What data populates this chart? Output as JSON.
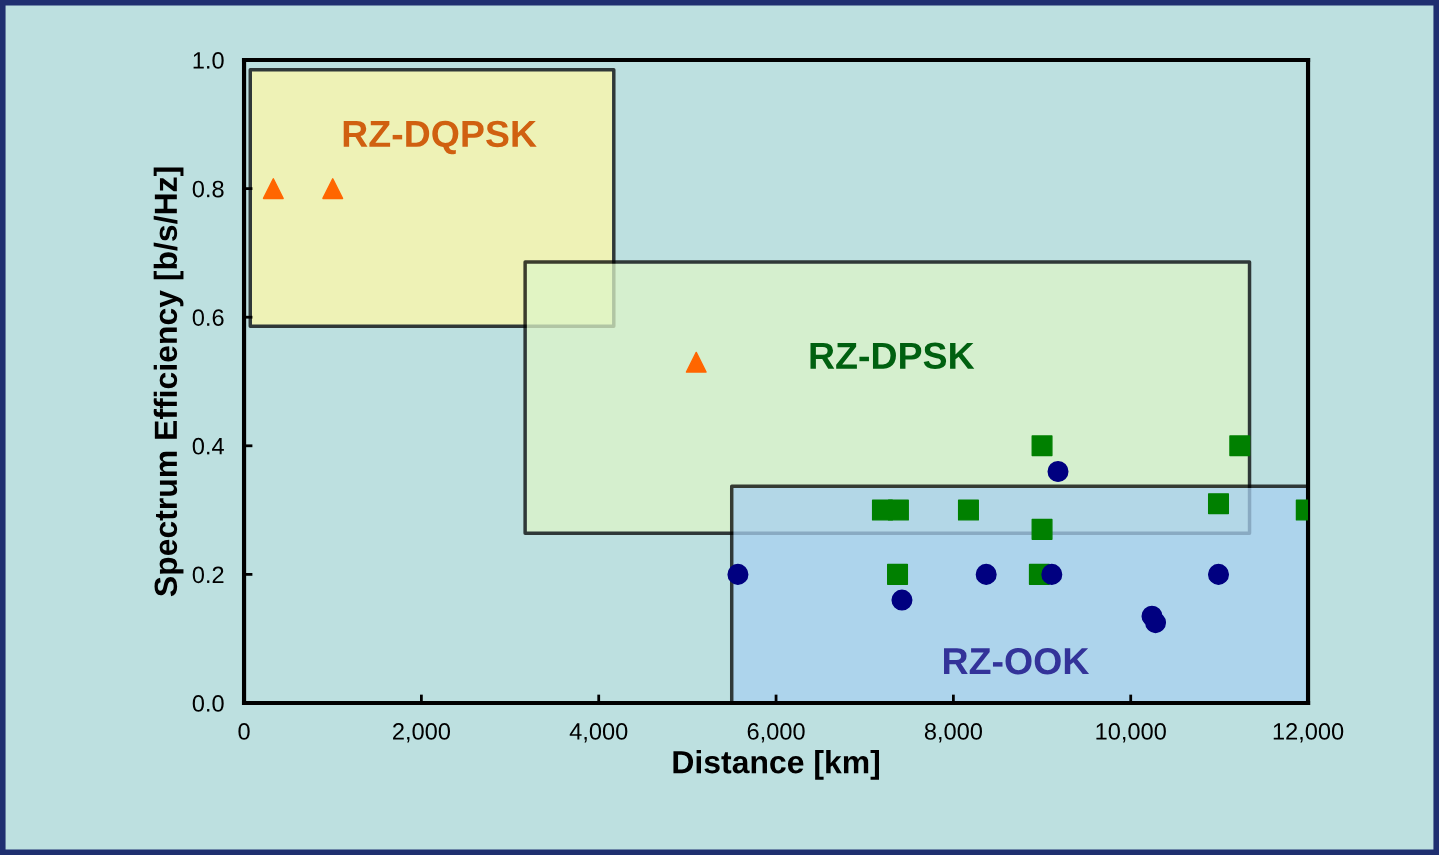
{
  "chart_data": {
    "type": "scatter",
    "xlabel": "Distance [km]",
    "ylabel": "Spectrum Efficiency [b/s/Hz]",
    "xlim": [
      0,
      12000
    ],
    "ylim": [
      0,
      1.0
    ],
    "xticks": [
      {
        "value": 0,
        "label": "0"
      },
      {
        "value": 2000,
        "label": "2,000"
      },
      {
        "value": 4000,
        "label": "4,000"
      },
      {
        "value": 6000,
        "label": "6,000"
      },
      {
        "value": 8000,
        "label": "8,000"
      },
      {
        "value": 10000,
        "label": "10,000"
      },
      {
        "value": 12000,
        "label": "12,000"
      }
    ],
    "yticks": [
      {
        "value": 0,
        "label": "0.0"
      },
      {
        "value": 0.2,
        "label": "0.2"
      },
      {
        "value": 0.4,
        "label": "0.4"
      },
      {
        "value": 0.6,
        "label": "0.6"
      },
      {
        "value": 0.8,
        "label": "0.8"
      },
      {
        "value": 1.0,
        "label": "1.0"
      }
    ],
    "grid": false,
    "legend": false,
    "series": [
      {
        "name": "RZ-DQPSK",
        "color": "#ff6600",
        "marker": "triangle",
        "x": [
          330,
          1000,
          5100
        ],
        "values": [
          0.8,
          0.8,
          0.53
        ]
      },
      {
        "name": "RZ-DPSK",
        "color": "#008000",
        "marker": "square",
        "x": [
          9000,
          11230,
          7200,
          7380,
          8170,
          9000,
          10990,
          11980,
          7370,
          8970
        ],
        "values": [
          0.4,
          0.4,
          0.3,
          0.3,
          0.3,
          0.27,
          0.31,
          0.3,
          0.2,
          0.2
        ]
      },
      {
        "name": "RZ-OOK",
        "color": "#000080",
        "marker": "circle",
        "x": [
          5570,
          7420,
          8370,
          9110,
          9180,
          10240,
          10280,
          10990
        ],
        "values": [
          0.2,
          0.16,
          0.2,
          0.2,
          0.36,
          0.135,
          0.125,
          0.2
        ]
      }
    ]
  }
}
